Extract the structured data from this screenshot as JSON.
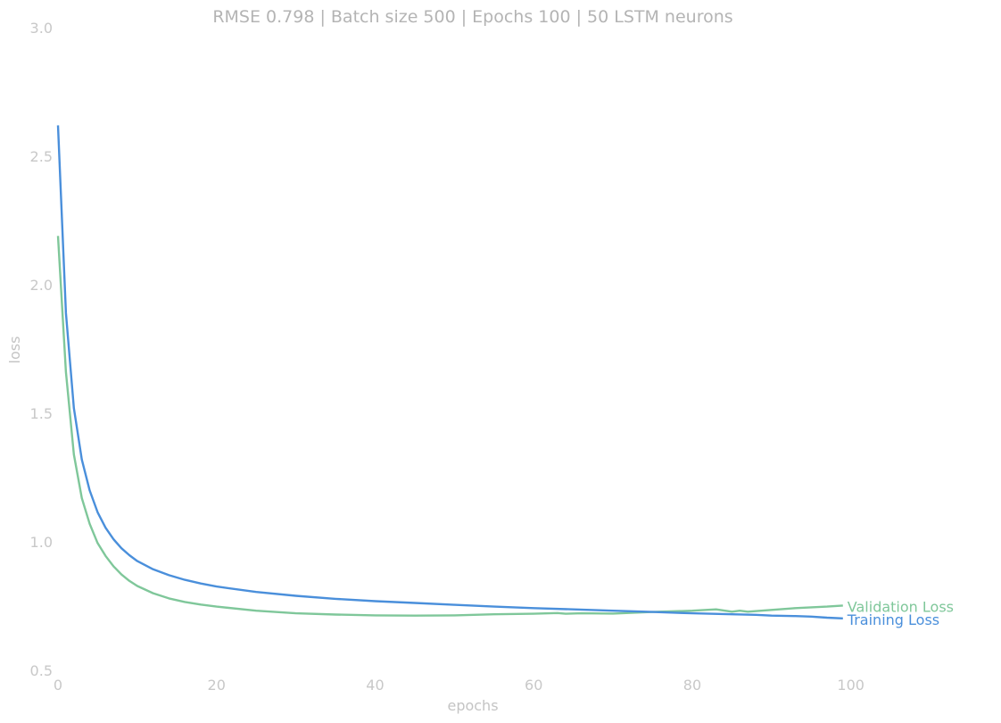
{
  "chart_data": {
    "type": "line",
    "title": "RMSE 0.798 | Batch size 500 | Epochs 100 |  50 LSTM neurons",
    "xlabel": "epochs",
    "ylabel": "loss",
    "xlim": [
      0,
      115
    ],
    "ylim": [
      0.5,
      3.0
    ],
    "xticks": [
      0,
      20,
      40,
      60,
      80,
      100
    ],
    "yticks": [
      0.5,
      1.0,
      1.5,
      2.0,
      2.5,
      3.0
    ],
    "xtick_labels": [
      "0",
      "20",
      "40",
      "60",
      "80",
      "100"
    ],
    "ytick_labels": [
      "0.5",
      "1.0",
      "1.5",
      "2.0",
      "2.5",
      "3.0"
    ],
    "grid": false,
    "legend": "none (series labelled at line ends)",
    "series": [
      {
        "name": "Training Loss",
        "color": "#4a8fdb",
        "x": [
          0,
          1,
          2,
          3,
          4,
          5,
          6,
          7,
          8,
          9,
          10,
          12,
          14,
          16,
          18,
          20,
          25,
          30,
          35,
          40,
          45,
          50,
          55,
          60,
          65,
          70,
          75,
          80,
          85,
          88,
          90,
          93,
          95,
          97,
          99
        ],
        "values": [
          2.62,
          1.89,
          1.52,
          1.32,
          1.2,
          1.115,
          1.055,
          1.01,
          0.975,
          0.948,
          0.925,
          0.893,
          0.87,
          0.852,
          0.838,
          0.826,
          0.805,
          0.79,
          0.778,
          0.769,
          0.762,
          0.755,
          0.748,
          0.742,
          0.737,
          0.732,
          0.727,
          0.722,
          0.718,
          0.716,
          0.713,
          0.711,
          0.709,
          0.705,
          0.702
        ]
      },
      {
        "name": "Validation Loss",
        "color": "#7fc79a",
        "x": [
          0,
          1,
          2,
          3,
          4,
          5,
          6,
          7,
          8,
          9,
          10,
          12,
          14,
          16,
          18,
          20,
          25,
          30,
          35,
          40,
          45,
          50,
          55,
          60,
          63,
          64,
          66,
          70,
          75,
          80,
          83,
          85,
          86,
          87,
          90,
          93,
          95,
          97,
          99
        ],
        "values": [
          2.19,
          1.66,
          1.34,
          1.17,
          1.07,
          0.995,
          0.945,
          0.905,
          0.873,
          0.848,
          0.828,
          0.8,
          0.78,
          0.766,
          0.756,
          0.748,
          0.732,
          0.722,
          0.717,
          0.714,
          0.713,
          0.714,
          0.718,
          0.72,
          0.723,
          0.72,
          0.722,
          0.721,
          0.727,
          0.732,
          0.737,
          0.728,
          0.732,
          0.728,
          0.735,
          0.742,
          0.745,
          0.748,
          0.752
        ]
      }
    ]
  }
}
